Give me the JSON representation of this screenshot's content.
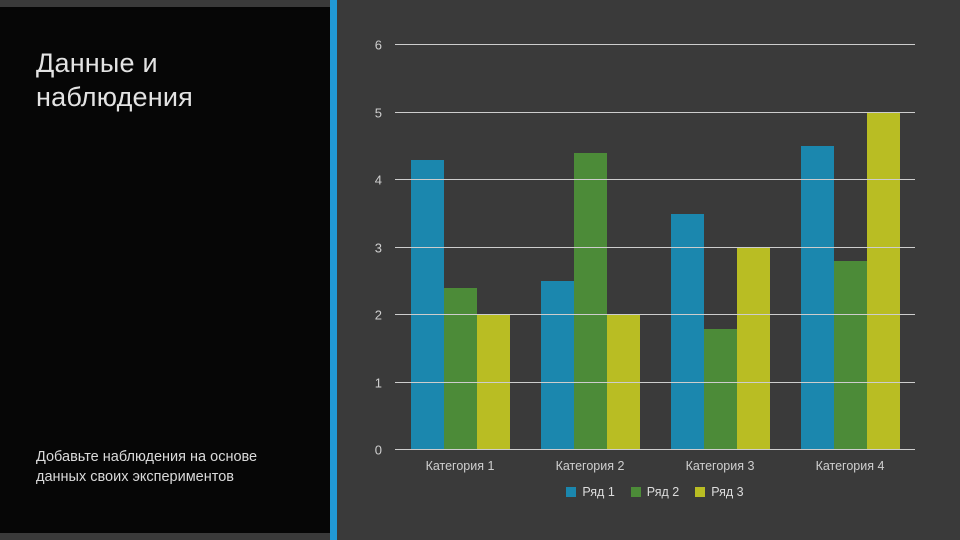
{
  "slide": {
    "title": "Данные и наблюдения",
    "subtitle": "Добавьте наблюдения на основе данных своих экспериментов",
    "accent_color": "#2199d6",
    "sidebar_bg": "#060606",
    "main_bg": "#3a3a3a",
    "gridline_color": "#cdcdcd",
    "text_color": "#e3e3e3"
  },
  "chart_data": {
    "type": "bar",
    "title": "",
    "xlabel": "",
    "ylabel": "",
    "categories": [
      "Категория 1",
      "Категория 2",
      "Категория 3",
      "Категория 4"
    ],
    "series": [
      {
        "name": "Ряд 1",
        "color": "#1b87ae",
        "values": [
          4.3,
          2.5,
          3.5,
          4.5
        ]
      },
      {
        "name": "Ряд 2",
        "color": "#4c8b38",
        "values": [
          2.4,
          4.4,
          1.8,
          2.8
        ]
      },
      {
        "name": "Ряд 3",
        "color": "#b9bd23",
        "values": [
          2.0,
          2.0,
          3.0,
          5.0
        ]
      }
    ],
    "ylim": [
      0,
      6
    ],
    "yticks": [
      0,
      1,
      2,
      3,
      4,
      5,
      6
    ],
    "grid": true,
    "legend_position": "bottom"
  }
}
